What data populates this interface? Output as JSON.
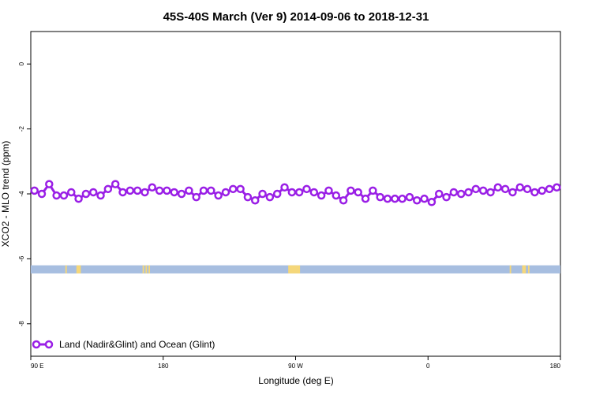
{
  "chart_data": {
    "type": "line",
    "title": "45S-40S March (Ver 9)   2014-09-06 to 2018-12-31",
    "xlabel": "Longitude (deg E)",
    "ylabel": "XCO2 - MLO trend (ppm)",
    "xlim": [
      90,
      450
    ],
    "ylim": [
      -9,
      1
    ],
    "x_ticks": [
      {
        "value": 90,
        "label": "90 E"
      },
      {
        "value": 180,
        "label": "180"
      },
      {
        "value": 270,
        "label": "90 W"
      },
      {
        "value": 360,
        "label": "0"
      },
      {
        "value": 450,
        "label": "180"
      }
    ],
    "y_ticks": [
      {
        "value": 0,
        "label": "0"
      },
      {
        "value": -2,
        "label": "-2"
      },
      {
        "value": -4,
        "label": "-4"
      },
      {
        "value": -6,
        "label": "-6"
      },
      {
        "value": -8,
        "label": "-8"
      }
    ],
    "legend": {
      "position": "bottom-left",
      "label": "Land (Nadir&Glint) and Ocean (Glint)",
      "color": "#9a1fe6"
    },
    "series": [
      {
        "name": "Land (Nadir&Glint) and Ocean (Glint)",
        "color": "#9a1fe6",
        "x": [
          92.5,
          97.5,
          102.5,
          107.5,
          112.5,
          117.5,
          122.5,
          127.5,
          132.5,
          137.5,
          142.5,
          147.5,
          152.5,
          157.5,
          162.5,
          167.5,
          172.5,
          177.5,
          182.5,
          187.5,
          192.5,
          197.5,
          202.5,
          207.5,
          212.5,
          217.5,
          222.5,
          227.5,
          232.5,
          237.5,
          242.5,
          247.5,
          252.5,
          257.5,
          262.5,
          267.5,
          272.5,
          277.5,
          282.5,
          287.5,
          292.5,
          297.5,
          302.5,
          307.5,
          312.5,
          317.5,
          322.5,
          327.5,
          332.5,
          337.5,
          342.5,
          347.5,
          352.5,
          357.5,
          362.5,
          367.5,
          372.5,
          377.5,
          382.5,
          387.5,
          392.5,
          397.5,
          402.5,
          407.5,
          412.5,
          417.5,
          422.5,
          427.5,
          432.5,
          437.5,
          442.5,
          447.5
        ],
        "y": [
          -3.9,
          -4.0,
          -3.7,
          -4.05,
          -4.05,
          -3.95,
          -4.15,
          -4.0,
          -3.95,
          -4.05,
          -3.85,
          -3.7,
          -3.95,
          -3.9,
          -3.9,
          -3.95,
          -3.8,
          -3.9,
          -3.9,
          -3.95,
          -4.0,
          -3.9,
          -4.1,
          -3.9,
          -3.9,
          -4.05,
          -3.95,
          -3.85,
          -3.85,
          -4.1,
          -4.2,
          -4.0,
          -4.1,
          -4.0,
          -3.8,
          -3.95,
          -3.95,
          -3.85,
          -3.95,
          -4.05,
          -3.9,
          -4.05,
          -4.2,
          -3.9,
          -3.95,
          -4.15,
          -3.9,
          -4.1,
          -4.15,
          -4.15,
          -4.15,
          -4.1,
          -4.2,
          -4.15,
          -4.25,
          -4.0,
          -4.1,
          -3.95,
          -4.0,
          -3.95,
          -3.85,
          -3.9,
          -3.95,
          -3.8,
          -3.85,
          -3.95,
          -3.8,
          -3.85,
          -3.95,
          -3.9,
          -3.85,
          -3.8
        ]
      }
    ],
    "surface_strip": {
      "y_range": [
        -6.45,
        -6.2
      ],
      "ocean_color": "#a7bee0",
      "land_color": "#f5d77a",
      "land_x_ranges": [
        [
          113.5,
          114.5
        ],
        [
          121,
          124
        ],
        [
          166,
          167
        ],
        [
          168,
          169
        ],
        [
          170,
          171
        ],
        [
          265,
          273
        ],
        [
          415.5,
          416.5
        ],
        [
          424,
          426.5
        ],
        [
          428,
          429
        ]
      ]
    }
  }
}
